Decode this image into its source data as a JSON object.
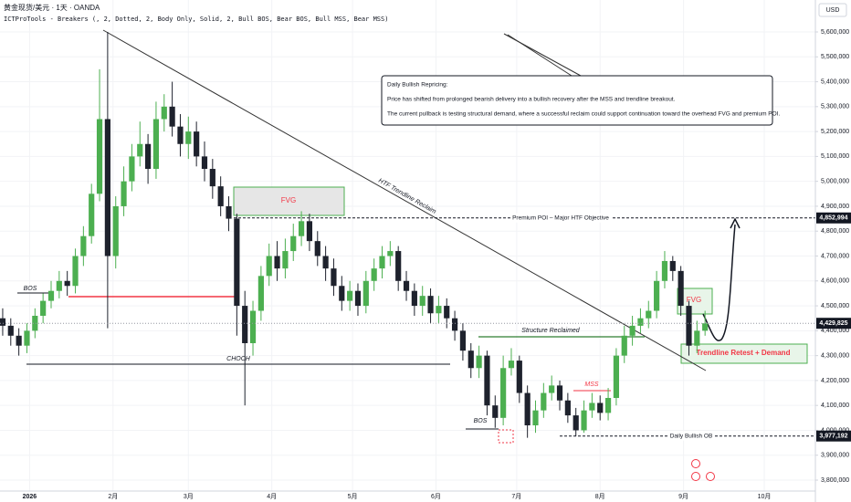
{
  "chart_data": {
    "type": "candlestick",
    "title": "黄金现货/美元 · 1天 · OANDA",
    "indicator": "ICTProTools - Breakers (, 2, Dotted, 2, Body Only, Solid, 2, Bull BOS, Bear BOS, Bull MSS, Bear MSS)",
    "currency": "USD",
    "up_color": "#4caf50",
    "down_color": "#1e222d",
    "grid": true,
    "x": [
      -10,
      -7,
      -4,
      -1,
      2,
      5,
      8,
      11,
      14,
      17,
      20,
      23,
      26,
      29,
      32,
      35,
      38,
      41,
      44,
      47,
      50,
      53,
      56,
      59,
      62,
      65,
      68,
      71,
      74,
      77,
      80,
      83,
      86,
      89,
      92,
      95,
      98,
      101,
      104,
      107,
      110,
      113,
      116,
      119,
      122,
      125,
      128,
      131,
      134,
      137,
      140,
      143,
      146,
      149,
      152,
      155,
      158,
      161,
      164,
      167,
      170,
      173,
      176,
      179,
      182,
      185,
      188,
      191,
      194,
      197,
      200,
      203,
      206,
      209,
      212,
      215,
      218,
      221,
      224,
      227,
      230,
      233,
      236,
      239,
      242,
      245,
      248,
      251
    ],
    "open": [
      4450000,
      4420000,
      4380000,
      4340000,
      4400000,
      4460000,
      4520000,
      4560000,
      4600000,
      4580000,
      4700000,
      4780000,
      4950000,
      5250000,
      4700000,
      4900000,
      5000000,
      5100000,
      5150000,
      5050000,
      5250000,
      5300000,
      5220000,
      5150000,
      5200000,
      5100000,
      5050000,
      4980000,
      4900000,
      4850000,
      4500000,
      4350000,
      4480000,
      4620000,
      4700000,
      4650000,
      4720000,
      4780000,
      4840000,
      4760000,
      4700000,
      4650000,
      4580000,
      4520000,
      4560000,
      4500000,
      4600000,
      4650000,
      4700000,
      4720000,
      4600000,
      4560000,
      4500000,
      4540000,
      4470000,
      4500000,
      4450000,
      4400000,
      4320000,
      4250000,
      4300000,
      4100000,
      4050000,
      4250000,
      4280000,
      4150000,
      4020000,
      4080000,
      4150000,
      4180000,
      4120000,
      4060000,
      4000000,
      4080000,
      4110000,
      4070000,
      4130000,
      4300000,
      4380000,
      4420000,
      4450000,
      4480000,
      4600000,
      4680000,
      4640000,
      4500000,
      4340000,
      4400000
    ],
    "high": [
      4490000,
      4450000,
      4410000,
      4430000,
      4490000,
      4550000,
      4600000,
      4640000,
      4640000,
      4730000,
      4820000,
      4990000,
      5450000,
      5600000,
      4940000,
      5060000,
      5150000,
      5240000,
      5190000,
      5320000,
      5350000,
      5400000,
      5270000,
      5260000,
      5240000,
      5160000,
      5090000,
      5020000,
      4940000,
      4870000,
      4560000,
      4520000,
      4660000,
      4750000,
      4760000,
      4770000,
      4830000,
      4880000,
      4870000,
      4800000,
      4740000,
      4690000,
      4620000,
      4600000,
      4590000,
      4640000,
      4690000,
      4740000,
      4760000,
      4740000,
      4640000,
      4590000,
      4580000,
      4570000,
      4540000,
      4530000,
      4480000,
      4430000,
      4350000,
      4340000,
      4320000,
      4140000,
      4300000,
      4330000,
      4300000,
      4180000,
      4120000,
      4190000,
      4220000,
      4200000,
      4150000,
      4090000,
      4120000,
      4150000,
      4140000,
      4170000,
      4330000,
      4420000,
      4460000,
      4490000,
      4520000,
      4640000,
      4720000,
      4700000,
      4660000,
      4520000,
      4440000,
      4480000
    ],
    "low": [
      4380000,
      4340000,
      4300000,
      4310000,
      4370000,
      4430000,
      4490000,
      4530000,
      4540000,
      4550000,
      4660000,
      4750000,
      4920000,
      4410000,
      4650000,
      4860000,
      4960000,
      5060000,
      4990000,
      5010000,
      5200000,
      5180000,
      5100000,
      5090000,
      5060000,
      5000000,
      4930000,
      4860000,
      4800000,
      4380000,
      4100000,
      4300000,
      4440000,
      4580000,
      4600000,
      4610000,
      4680000,
      4740000,
      4720000,
      4660000,
      4600000,
      4540000,
      4480000,
      4480000,
      4460000,
      4470000,
      4560000,
      4610000,
      4660000,
      4560000,
      4520000,
      4460000,
      4460000,
      4430000,
      4430000,
      4410000,
      4360000,
      4280000,
      4210000,
      4210000,
      4060000,
      4010000,
      4020000,
      4220000,
      4110000,
      3970000,
      3990000,
      4050000,
      4120000,
      4080000,
      4030000,
      3977000,
      3990000,
      4050000,
      4040000,
      4040000,
      4100000,
      4270000,
      4340000,
      4390000,
      4410000,
      4450000,
      4570000,
      4600000,
      4460000,
      4300000,
      4310000,
      4380000
    ],
    "close": [
      4420000,
      4380000,
      4340000,
      4400000,
      4460000,
      4520000,
      4560000,
      4600000,
      4580000,
      4700000,
      4780000,
      4950000,
      5250000,
      4700000,
      4900000,
      5000000,
      5100000,
      5150000,
      5050000,
      5250000,
      5300000,
      5220000,
      5150000,
      5200000,
      5100000,
      5050000,
      4980000,
      4900000,
      4850000,
      4500000,
      4350000,
      4480000,
      4620000,
      4700000,
      4650000,
      4720000,
      4780000,
      4840000,
      4760000,
      4700000,
      4650000,
      4580000,
      4520000,
      4560000,
      4500000,
      4600000,
      4650000,
      4700000,
      4720000,
      4600000,
      4560000,
      4500000,
      4540000,
      4470000,
      4500000,
      4450000,
      4400000,
      4320000,
      4250000,
      4300000,
      4100000,
      4050000,
      4250000,
      4280000,
      4150000,
      4020000,
      4080000,
      4150000,
      4180000,
      4120000,
      4060000,
      4000000,
      4080000,
      4110000,
      4070000,
      4130000,
      4300000,
      4380000,
      4420000,
      4450000,
      4480000,
      4600000,
      4680000,
      4640000,
      4500000,
      4340000,
      4400000,
      4429825
    ],
    "xlim": [
      -11,
      292
    ],
    "xticks": [
      {
        "value": 0,
        "label": "2026"
      },
      {
        "value": 31,
        "label": "2月"
      },
      {
        "value": 59,
        "label": "3月"
      },
      {
        "value": 90,
        "label": "4月"
      },
      {
        "value": 120,
        "label": "5月"
      },
      {
        "value": 151,
        "label": "6月"
      },
      {
        "value": 181,
        "label": "7月"
      },
      {
        "value": 212,
        "label": "8月"
      },
      {
        "value": 243,
        "label": "9月"
      },
      {
        "value": 273,
        "label": "10月"
      }
    ],
    "ylim": [
      3756100,
      5728300
    ],
    "yticks": [
      {
        "value": 3800000,
        "label": "3,800,000"
      },
      {
        "value": 3900000,
        "label": "3,900,000"
      },
      {
        "value": 4000000,
        "label": "4,000,000"
      },
      {
        "value": 4100000,
        "label": "4,100,000"
      },
      {
        "value": 4200000,
        "label": "4,200,000"
      },
      {
        "value": 4300000,
        "label": "4,300,000"
      },
      {
        "value": 4400000,
        "label": "4,400,000"
      },
      {
        "value": 4500000,
        "label": "4,500,000"
      },
      {
        "value": 4600000,
        "label": "4,600,000"
      },
      {
        "value": 4700000,
        "label": "4,700,000"
      },
      {
        "value": 4800000,
        "label": "4,800,000"
      },
      {
        "value": 4900000,
        "label": "4,900,000"
      },
      {
        "value": 5000000,
        "label": "5,000,000"
      },
      {
        "value": 5100000,
        "label": "5,100,000"
      },
      {
        "value": 5200000,
        "label": "5,200,000"
      },
      {
        "value": 5300000,
        "label": "5,300,000"
      },
      {
        "value": 5400000,
        "label": "5,400,000"
      },
      {
        "value": 5500000,
        "label": "5,500,000"
      },
      {
        "value": 5600000,
        "label": "5,600,000"
      }
    ],
    "last_price": {
      "value": 4429825,
      "label": "4,429,825"
    },
    "levels": [
      {
        "value": 4852994,
        "label": "4,852,994",
        "text": "Premium POI – Major HTF Objective"
      },
      {
        "value": 3977192,
        "label": "3,977,192",
        "text": "Daily Bullish OB"
      }
    ],
    "annotations": {
      "bos_1": "BOS",
      "choch": "CHOCH",
      "fvg_1": "FVG",
      "trendline": "HTF Trendline Reclaim",
      "structure": "Structure Reclaimed",
      "mss": "MSS",
      "bos_2": "BOS",
      "fvg_2": "FVG",
      "demand": "Trendline Retest + Demand"
    },
    "callout": {
      "heading": "Daily Bullish Repricing:",
      "line_1": "Price has shifted from prolonged bearish delivery into a bullish recovery after the MSS and trendline breakout.",
      "line_2": "The current pullback is testing structural demand, where a successful reclaim could support continuation toward the overhead FVG and premium POI."
    }
  }
}
